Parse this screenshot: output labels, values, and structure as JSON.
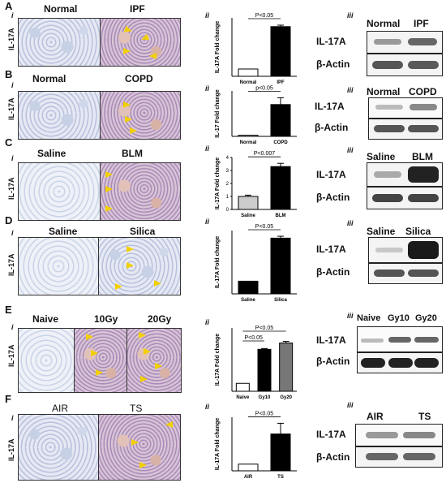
{
  "panels": [
    {
      "letter": "A",
      "roman_micro": "i",
      "roman_chart": "ii",
      "roman_blot": "iii",
      "vertical_label": "IL-17A",
      "micro_labels": [
        "Normal",
        "IPF"
      ],
      "blot_headers": [
        "Normal",
        "IPF"
      ],
      "blot_rows": [
        "IL-17A",
        "β-Actin"
      ],
      "chart_id": "A"
    },
    {
      "letter": "B",
      "roman_micro": "i",
      "roman_chart": "ii",
      "roman_blot": "iii",
      "vertical_label": "IL-17A",
      "micro_labels": [
        "Normal",
        "COPD"
      ],
      "blot_headers": [
        "Normal",
        "COPD"
      ],
      "blot_rows": [
        "IL-17A",
        "β-Actin"
      ],
      "chart_id": "B"
    },
    {
      "letter": "C",
      "roman_micro": "i",
      "roman_chart": "ii",
      "roman_blot": "iii",
      "vertical_label": "IL-17A",
      "micro_labels": [
        "Saline",
        "BLM"
      ],
      "blot_headers": [
        "Saline",
        "BLM"
      ],
      "blot_rows": [
        "IL-17A",
        "β-Actin"
      ],
      "chart_id": "C"
    },
    {
      "letter": "D",
      "roman_micro": "i",
      "roman_chart": "ii",
      "roman_blot": "iii",
      "vertical_label": "IL-17A",
      "micro_labels": [
        "Saline",
        "Silica"
      ],
      "blot_headers": [
        "Saline",
        "Silica"
      ],
      "blot_rows": [
        "IL-17A",
        "β-Actin"
      ],
      "chart_id": "D"
    },
    {
      "letter": "E",
      "roman_micro": "i",
      "roman_chart": "ii",
      "roman_blot": "iii",
      "vertical_label": "IL-17A",
      "micro_labels": [
        "Naive",
        "10Gy",
        "20Gy"
      ],
      "blot_headers": [
        "Naive",
        "Gy10",
        "Gy20"
      ],
      "blot_rows": [
        "IL-17A",
        "β-Actin"
      ],
      "chart_id": "E"
    },
    {
      "letter": "F",
      "roman_micro": "i",
      "roman_chart": "ii",
      "roman_blot": "iii",
      "vertical_label": "IL-17A",
      "micro_labels": [
        "AIR",
        "TS"
      ],
      "blot_headers": [
        "AIR",
        "TS"
      ],
      "blot_rows": [
        "IL-17A",
        "β-Actin"
      ],
      "chart_id": "F"
    }
  ],
  "chart_data": [
    {
      "id": "A",
      "type": "bar",
      "categories": [
        "Normal",
        "IPF"
      ],
      "values": [
        1,
        6.8
      ],
      "errors": [
        0,
        0.2
      ],
      "ylabel": "IL-17A Fold change",
      "annotations": [
        "P<0.05"
      ],
      "bar_colors": [
        "#ffffff",
        "#000000"
      ],
      "ylim": [
        0,
        8
      ]
    },
    {
      "id": "B",
      "type": "bar",
      "categories": [
        "Normal",
        "COPD"
      ],
      "values": [
        1,
        28
      ],
      "errors": [
        0,
        6
      ],
      "ylabel": "IL-17 Fold change",
      "annotations": [
        "p<0.05"
      ],
      "bar_colors": [
        "#ffffff",
        "#000000"
      ],
      "ylim": [
        0,
        40
      ]
    },
    {
      "id": "C",
      "type": "bar",
      "categories": [
        "Saline",
        "BLM"
      ],
      "values": [
        1,
        3.3
      ],
      "errors": [
        0.1,
        0.25
      ],
      "ylabel": "IL-17A Fold change",
      "yticks": [
        "0",
        "1",
        "2",
        "3",
        "4"
      ],
      "annotations": [
        "P<0.007"
      ],
      "bar_colors": [
        "#cccccc",
        "#000000"
      ],
      "ylim": [
        0,
        4
      ]
    },
    {
      "id": "D",
      "type": "bar",
      "categories": [
        "Saline",
        "Silica"
      ],
      "values": [
        1,
        4.4
      ],
      "errors": [
        0,
        0.15
      ],
      "ylabel": "IL-17A Fold change",
      "annotations": [
        "P<0.05"
      ],
      "bar_colors": [
        "#000000",
        "#000000"
      ],
      "ylim": [
        0,
        5
      ]
    },
    {
      "id": "E",
      "type": "bar",
      "categories": [
        "Naive",
        "Gy10",
        "Gy20"
      ],
      "values": [
        1,
        5.3,
        6.1
      ],
      "errors": [
        0,
        0.1,
        0.2
      ],
      "ylabel": "IL-17A Fold change",
      "annotations": [
        "P<0.05",
        "P<0.05"
      ],
      "bar_colors": [
        "#ffffff",
        "#000000",
        "#777777"
      ],
      "ylim": [
        0,
        8
      ]
    },
    {
      "id": "F",
      "type": "bar",
      "categories": [
        "AIR",
        "TS"
      ],
      "values": [
        1,
        5.5
      ],
      "errors": [
        0,
        1.6
      ],
      "ylabel": "IL-17A Fold change",
      "annotations": [
        "P<0.05"
      ],
      "bar_colors": [
        "#ffffff",
        "#000000"
      ],
      "ylim": [
        0,
        8
      ]
    }
  ]
}
